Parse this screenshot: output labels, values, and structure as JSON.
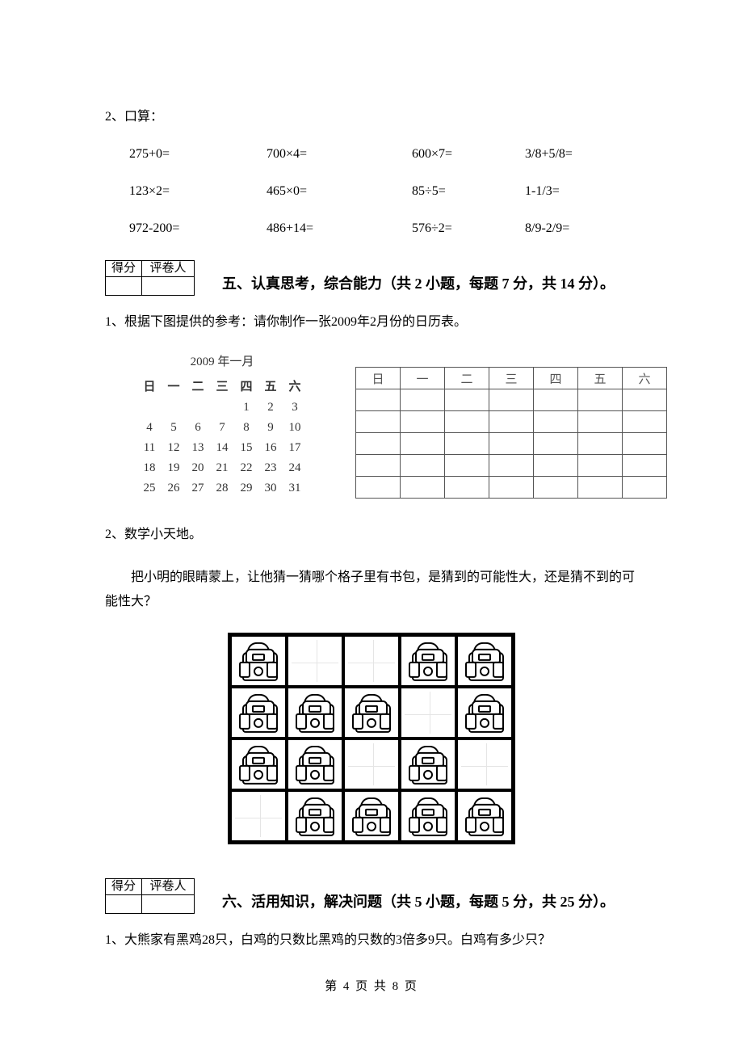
{
  "q2_label": "2、口算：",
  "calc": {
    "rows": [
      [
        "275+0=",
        "700×4=",
        "600×7=",
        "3/8+5/8="
      ],
      [
        "123×2=",
        "465×0=",
        "85÷5=",
        "1-1/3="
      ],
      [
        "972-200=",
        "486+14=",
        "576÷2=",
        "8/9-2/9="
      ]
    ]
  },
  "score_headers": [
    "得分",
    "评卷人"
  ],
  "section5_title": "五、认真思考，综合能力（共 2 小题，每题 7 分，共 14 分）。",
  "s5_q1": "1、根据下图提供的参考：请你制作一张2009年2月份的日历表。",
  "jan_cal": {
    "title": "2009 年一月",
    "weekdays": [
      "日",
      "一",
      "二",
      "三",
      "四",
      "五",
      "六"
    ],
    "weeks": [
      [
        "",
        "",
        "",
        "",
        "1",
        "2",
        "3"
      ],
      [
        "4",
        "5",
        "6",
        "7",
        "8",
        "9",
        "10"
      ],
      [
        "11",
        "12",
        "13",
        "14",
        "15",
        "16",
        "17"
      ],
      [
        "18",
        "19",
        "20",
        "21",
        "22",
        "23",
        "24"
      ],
      [
        "25",
        "26",
        "27",
        "28",
        "29",
        "30",
        "31"
      ]
    ]
  },
  "blank_cal": {
    "weekdays": [
      "日",
      "一",
      "二",
      "三",
      "四",
      "五",
      "六"
    ],
    "rows": 5
  },
  "s5_q2_label": "2、数学小天地。",
  "s5_q2_text": "把小明的眼睛蒙上，让他猜一猜哪个格子里有书包，是猜到的可能性大，还是猜不到的可能性大？",
  "cabinet": {
    "rows": 4,
    "cols": 5,
    "bags": [
      [
        true,
        false,
        false,
        true,
        true
      ],
      [
        true,
        true,
        true,
        false,
        true
      ],
      [
        true,
        true,
        false,
        true,
        false
      ],
      [
        false,
        true,
        true,
        true,
        true
      ]
    ]
  },
  "section6_title": "六、活用知识，解决问题（共 5 小题，每题 5 分，共 25 分）。",
  "s6_q1": "1、大熊家有黑鸡28只，白鸡的只数比黑鸡的只数的3倍多9只。白鸡有多少只？",
  "footer": "第 4 页 共 8 页"
}
